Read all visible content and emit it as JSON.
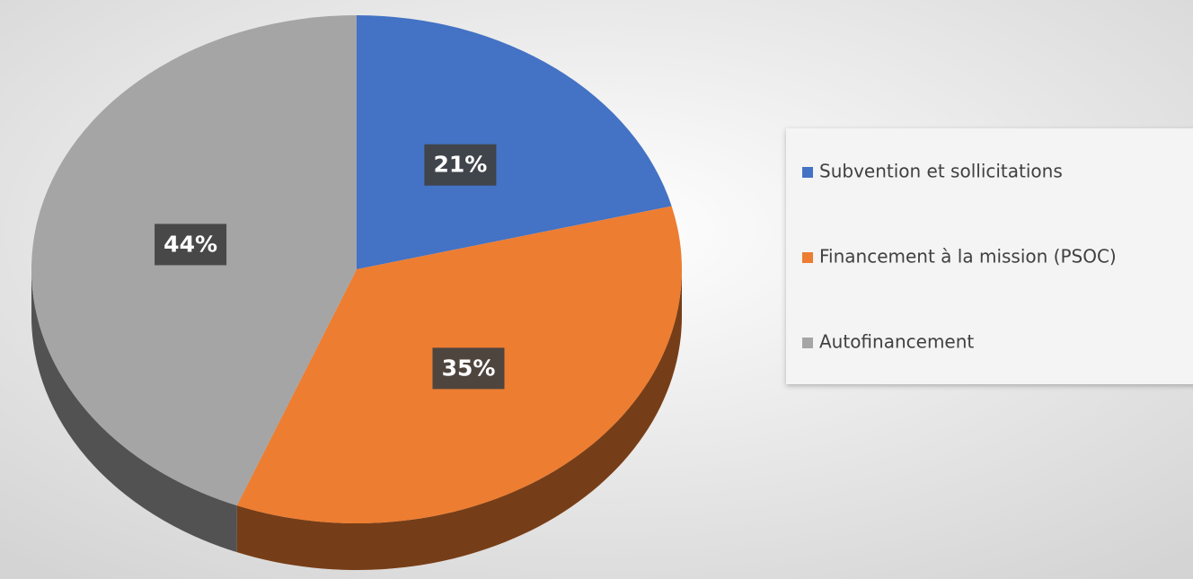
{
  "chart_data": {
    "type": "pie",
    "categories": [
      "Subvention et sollicitations",
      "Financement à la mission (PSOC)",
      "Autofinancement"
    ],
    "values": [
      21,
      35,
      44
    ],
    "value_labels": [
      "21%",
      "35%",
      "44%"
    ],
    "colors": [
      "#4472c4",
      "#ed7d31",
      "#a5a5a5"
    ],
    "legend": "right"
  }
}
